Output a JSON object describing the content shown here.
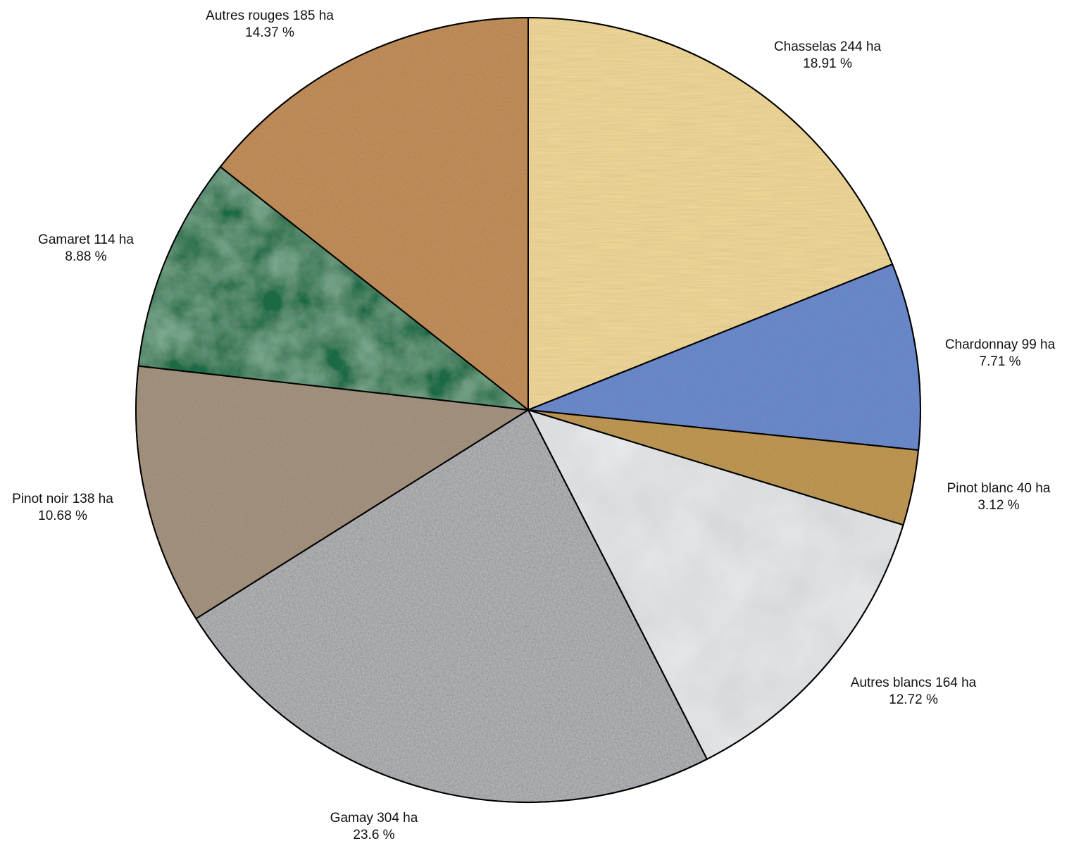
{
  "chart_data": {
    "type": "pie",
    "title": "",
    "unit": "ha",
    "start": "top",
    "direction": "clockwise",
    "slices": [
      {
        "label": "Chasselas 244 ha",
        "pct_label": "18.91 %",
        "value": 244,
        "percent": 18.91,
        "texture": "paper",
        "color": "#f0d99a"
      },
      {
        "label": "Chardonnay 99 ha",
        "pct_label": "7.71 %",
        "value": 99,
        "percent": 7.71,
        "texture": "blue-fabric",
        "color": "#6e8fd0"
      },
      {
        "label": "Pinot blanc 40 ha",
        "pct_label": "3.12 %",
        "value": 40,
        "percent": 3.12,
        "texture": "burlap",
        "color": "#c39a58"
      },
      {
        "label": "Autres blancs 164 ha",
        "pct_label": "12.72 %",
        "value": 164,
        "percent": 12.72,
        "texture": "white-marble",
        "color": "#e6e8ea"
      },
      {
        "label": "Gamay 304 ha",
        "pct_label": "23.6 %",
        "value": 304,
        "percent": 23.6,
        "texture": "granite",
        "color": "#b9bbbe"
      },
      {
        "label": "Pinot noir 138 ha",
        "pct_label": "10.68 %",
        "value": 138,
        "percent": 10.68,
        "texture": "brown-gravel",
        "color": "#a79682"
      },
      {
        "label": "Gamaret 114 ha",
        "pct_label": "8.88 %",
        "value": 114,
        "percent": 8.88,
        "texture": "green-marble",
        "color": "#1f6b45"
      },
      {
        "label": "Autres rouges 185 ha",
        "pct_label": "14.37 %",
        "value": 185,
        "percent": 14.37,
        "texture": "cork",
        "color": "#c8915c"
      }
    ]
  }
}
